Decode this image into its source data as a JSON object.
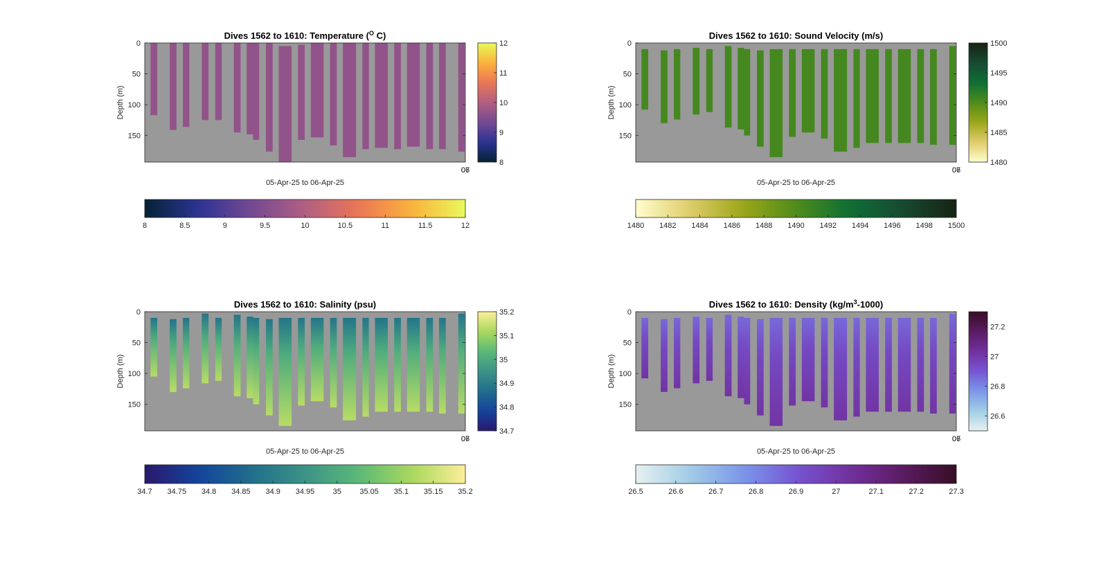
{
  "figure": {
    "background": "#ffffff",
    "plot_background": "#999999"
  },
  "chart_data": [
    {
      "type": "heatmap",
      "title": "Dives 1562 to 1610: Temperature (",
      "title_sup": "O",
      "title_tail": " C)",
      "ylabel": "Depth (m)",
      "xlabel": "05-Apr-25 to 06-Apr-25",
      "corner_ticks": [
        "06",
        "07"
      ],
      "ylim": [
        193,
        0
      ],
      "yticks": [
        0,
        50,
        100,
        150
      ],
      "colormap": "thermal",
      "clim": [
        8,
        12
      ],
      "side_colorbar_ticks": [
        "8",
        "9",
        "10",
        "11",
        "12"
      ],
      "bottom_colorbar_ticks": [
        "8",
        "8.5",
        "9",
        "9.5",
        "10",
        "10.5",
        "11",
        "11.5",
        "12"
      ],
      "profile_color_value": 9.65,
      "profiles": [
        {
          "x": [
            0.018,
            0.039
          ],
          "depth": [
            0,
            117
          ]
        },
        {
          "x": [
            0.078,
            0.099
          ],
          "depth": [
            0,
            141
          ]
        },
        {
          "x": [
            0.119,
            0.139
          ],
          "depth": [
            0,
            136
          ]
        },
        {
          "x": [
            0.178,
            0.199
          ],
          "depth": [
            0,
            125
          ]
        },
        {
          "x": [
            0.22,
            0.24
          ],
          "depth": [
            0,
            125
          ]
        },
        {
          "x": [
            0.278,
            0.299
          ],
          "depth": [
            0,
            145
          ]
        },
        {
          "x": [
            0.318,
            0.338
          ],
          "depth": [
            0,
            148
          ]
        },
        {
          "x": [
            0.338,
            0.357
          ],
          "depth": [
            0,
            157
          ]
        },
        {
          "x": [
            0.378,
            0.399
          ],
          "depth": [
            0,
            176
          ]
        },
        {
          "x": [
            0.418,
            0.458
          ],
          "depth": [
            5,
            193
          ]
        },
        {
          "x": [
            0.478,
            0.499
          ],
          "depth": [
            3,
            157
          ]
        },
        {
          "x": [
            0.518,
            0.558
          ],
          "depth": [
            0,
            153
          ]
        },
        {
          "x": [
            0.578,
            0.599
          ],
          "depth": [
            0,
            166
          ]
        },
        {
          "x": [
            0.618,
            0.659
          ],
          "depth": [
            0,
            185
          ]
        },
        {
          "x": [
            0.679,
            0.699
          ],
          "depth": [
            0,
            172
          ]
        },
        {
          "x": [
            0.718,
            0.758
          ],
          "depth": [
            0,
            170
          ]
        },
        {
          "x": [
            0.778,
            0.799
          ],
          "depth": [
            0,
            172
          ]
        },
        {
          "x": [
            0.818,
            0.858
          ],
          "depth": [
            0,
            168
          ]
        },
        {
          "x": [
            0.878,
            0.899
          ],
          "depth": [
            0,
            172
          ]
        },
        {
          "x": [
            0.918,
            0.939
          ],
          "depth": [
            0,
            172
          ]
        },
        {
          "x": [
            0.978,
            0.998
          ],
          "depth": [
            0,
            176
          ]
        }
      ]
    },
    {
      "type": "heatmap",
      "title": "Dives 1562 to 1610: Sound Velocity (m/s)",
      "ylabel": "Depth (m)",
      "xlabel": "05-Apr-25 to 06-Apr-25",
      "corner_ticks": [
        "06",
        "07"
      ],
      "ylim": [
        193,
        0
      ],
      "yticks": [
        0,
        50,
        100,
        150
      ],
      "colormap": "speed",
      "clim": [
        1480,
        1500
      ],
      "side_colorbar_ticks": [
        "1480",
        "1485",
        "1490",
        "1495",
        "1500"
      ],
      "bottom_colorbar_ticks": [
        "1480",
        "1482",
        "1484",
        "1486",
        "1488",
        "1490",
        "1492",
        "1494",
        "1496",
        "1498",
        "1500"
      ],
      "profile_color_value": 1490.5,
      "profiles": [
        {
          "x": [
            0.018,
            0.039
          ],
          "depth": [
            10,
            108
          ]
        },
        {
          "x": [
            0.078,
            0.099
          ],
          "depth": [
            12,
            130
          ]
        },
        {
          "x": [
            0.119,
            0.139
          ],
          "depth": [
            10,
            124
          ]
        },
        {
          "x": [
            0.178,
            0.199
          ],
          "depth": [
            8,
            116
          ]
        },
        {
          "x": [
            0.22,
            0.24
          ],
          "depth": [
            10,
            112
          ]
        },
        {
          "x": [
            0.278,
            0.299
          ],
          "depth": [
            5,
            137
          ]
        },
        {
          "x": [
            0.318,
            0.338
          ],
          "depth": [
            8,
            140
          ]
        },
        {
          "x": [
            0.338,
            0.357
          ],
          "depth": [
            10,
            150
          ]
        },
        {
          "x": [
            0.378,
            0.399
          ],
          "depth": [
            12,
            168
          ]
        },
        {
          "x": [
            0.418,
            0.458
          ],
          "depth": [
            10,
            185
          ]
        },
        {
          "x": [
            0.478,
            0.499
          ],
          "depth": [
            10,
            152
          ]
        },
        {
          "x": [
            0.518,
            0.558
          ],
          "depth": [
            10,
            145
          ]
        },
        {
          "x": [
            0.578,
            0.599
          ],
          "depth": [
            10,
            155
          ]
        },
        {
          "x": [
            0.618,
            0.659
          ],
          "depth": [
            10,
            176
          ]
        },
        {
          "x": [
            0.679,
            0.699
          ],
          "depth": [
            10,
            170
          ]
        },
        {
          "x": [
            0.718,
            0.758
          ],
          "depth": [
            10,
            162
          ]
        },
        {
          "x": [
            0.778,
            0.799
          ],
          "depth": [
            10,
            162
          ]
        },
        {
          "x": [
            0.818,
            0.858
          ],
          "depth": [
            10,
            162
          ]
        },
        {
          "x": [
            0.878,
            0.899
          ],
          "depth": [
            10,
            162
          ]
        },
        {
          "x": [
            0.918,
            0.939
          ],
          "depth": [
            10,
            165
          ]
        },
        {
          "x": [
            0.978,
            0.998
          ],
          "depth": [
            5,
            165
          ]
        }
      ]
    },
    {
      "type": "heatmap",
      "title": "Dives 1562 to 1610: Salinity (psu)",
      "ylabel": "Depth (m)",
      "xlabel": "05-Apr-25 to 06-Apr-25",
      "corner_ticks": [
        "06",
        "07"
      ],
      "ylim": [
        193,
        0
      ],
      "yticks": [
        0,
        50,
        100,
        150
      ],
      "colormap": "haline",
      "clim": [
        34.7,
        35.2
      ],
      "side_colorbar_ticks": [
        "34.7",
        "34.8",
        "34.9",
        "35",
        "35.1",
        "35.2"
      ],
      "bottom_colorbar_ticks": [
        "34.7",
        "34.75",
        "34.8",
        "34.85",
        "34.9",
        "34.95",
        "35",
        "35.05",
        "35.1",
        "35.15",
        "35.2"
      ],
      "profile_top_value": 34.88,
      "profile_bottom_value": 35.13,
      "profiles": [
        {
          "x": [
            0.018,
            0.039
          ],
          "depth": [
            10,
            105
          ]
        },
        {
          "x": [
            0.078,
            0.099
          ],
          "depth": [
            12,
            130
          ]
        },
        {
          "x": [
            0.119,
            0.139
          ],
          "depth": [
            10,
            124
          ]
        },
        {
          "x": [
            0.178,
            0.199
          ],
          "depth": [
            3,
            116
          ]
        },
        {
          "x": [
            0.22,
            0.24
          ],
          "depth": [
            10,
            112
          ]
        },
        {
          "x": [
            0.278,
            0.299
          ],
          "depth": [
            5,
            137
          ]
        },
        {
          "x": [
            0.318,
            0.338
          ],
          "depth": [
            8,
            140
          ]
        },
        {
          "x": [
            0.338,
            0.357
          ],
          "depth": [
            10,
            150
          ]
        },
        {
          "x": [
            0.378,
            0.399
          ],
          "depth": [
            12,
            168
          ]
        },
        {
          "x": [
            0.418,
            0.458
          ],
          "depth": [
            10,
            185
          ]
        },
        {
          "x": [
            0.478,
            0.499
          ],
          "depth": [
            10,
            152
          ]
        },
        {
          "x": [
            0.518,
            0.558
          ],
          "depth": [
            10,
            145
          ]
        },
        {
          "x": [
            0.578,
            0.599
          ],
          "depth": [
            10,
            155
          ]
        },
        {
          "x": [
            0.618,
            0.659
          ],
          "depth": [
            10,
            176
          ]
        },
        {
          "x": [
            0.679,
            0.699
          ],
          "depth": [
            10,
            170
          ]
        },
        {
          "x": [
            0.718,
            0.758
          ],
          "depth": [
            10,
            162
          ]
        },
        {
          "x": [
            0.778,
            0.799
          ],
          "depth": [
            10,
            162
          ]
        },
        {
          "x": [
            0.818,
            0.858
          ],
          "depth": [
            10,
            162
          ]
        },
        {
          "x": [
            0.878,
            0.899
          ],
          "depth": [
            10,
            162
          ]
        },
        {
          "x": [
            0.918,
            0.939
          ],
          "depth": [
            10,
            165
          ]
        },
        {
          "x": [
            0.978,
            0.998
          ],
          "depth": [
            3,
            165
          ]
        }
      ]
    },
    {
      "type": "heatmap",
      "title": "Dives 1562 to 1610: Density (kg/m",
      "title_sup": "3",
      "title_tail": "-1000)",
      "ylabel": "Depth (m)",
      "xlabel": "05-Apr-25 to 06-Apr-25",
      "corner_ticks": [
        "06",
        "07"
      ],
      "ylim": [
        193,
        0
      ],
      "yticks": [
        0,
        50,
        100,
        150
      ],
      "colormap": "dense",
      "clim": [
        26.5,
        27.3
      ],
      "side_colorbar_ticks": [
        "26.6",
        "26.8",
        "27",
        "27.2"
      ],
      "bottom_colorbar_ticks": [
        "26.5",
        "26.6",
        "26.7",
        "26.8",
        "26.9",
        "27",
        "27.1",
        "27.2",
        "27.3"
      ],
      "profile_top_value": 26.86,
      "profile_bottom_value": 27.02,
      "profiles": [
        {
          "x": [
            0.018,
            0.039
          ],
          "depth": [
            10,
            108
          ]
        },
        {
          "x": [
            0.078,
            0.099
          ],
          "depth": [
            12,
            130
          ]
        },
        {
          "x": [
            0.119,
            0.139
          ],
          "depth": [
            10,
            124
          ]
        },
        {
          "x": [
            0.178,
            0.199
          ],
          "depth": [
            8,
            116
          ]
        },
        {
          "x": [
            0.22,
            0.24
          ],
          "depth": [
            10,
            112
          ]
        },
        {
          "x": [
            0.278,
            0.299
          ],
          "depth": [
            5,
            137
          ]
        },
        {
          "x": [
            0.318,
            0.338
          ],
          "depth": [
            8,
            140
          ]
        },
        {
          "x": [
            0.338,
            0.357
          ],
          "depth": [
            10,
            150
          ]
        },
        {
          "x": [
            0.378,
            0.399
          ],
          "depth": [
            12,
            168
          ]
        },
        {
          "x": [
            0.418,
            0.458
          ],
          "depth": [
            10,
            185
          ]
        },
        {
          "x": [
            0.478,
            0.499
          ],
          "depth": [
            10,
            152
          ]
        },
        {
          "x": [
            0.518,
            0.558
          ],
          "depth": [
            10,
            145
          ]
        },
        {
          "x": [
            0.578,
            0.599
          ],
          "depth": [
            10,
            155
          ]
        },
        {
          "x": [
            0.618,
            0.659
          ],
          "depth": [
            10,
            176
          ]
        },
        {
          "x": [
            0.679,
            0.699
          ],
          "depth": [
            10,
            170
          ]
        },
        {
          "x": [
            0.718,
            0.758
          ],
          "depth": [
            10,
            162
          ]
        },
        {
          "x": [
            0.778,
            0.799
          ],
          "depth": [
            10,
            162
          ]
        },
        {
          "x": [
            0.818,
            0.858
          ],
          "depth": [
            10,
            162
          ]
        },
        {
          "x": [
            0.878,
            0.899
          ],
          "depth": [
            10,
            162
          ]
        },
        {
          "x": [
            0.918,
            0.939
          ],
          "depth": [
            10,
            165
          ]
        },
        {
          "x": [
            0.978,
            0.998
          ],
          "depth": [
            3,
            165
          ]
        }
      ]
    }
  ]
}
